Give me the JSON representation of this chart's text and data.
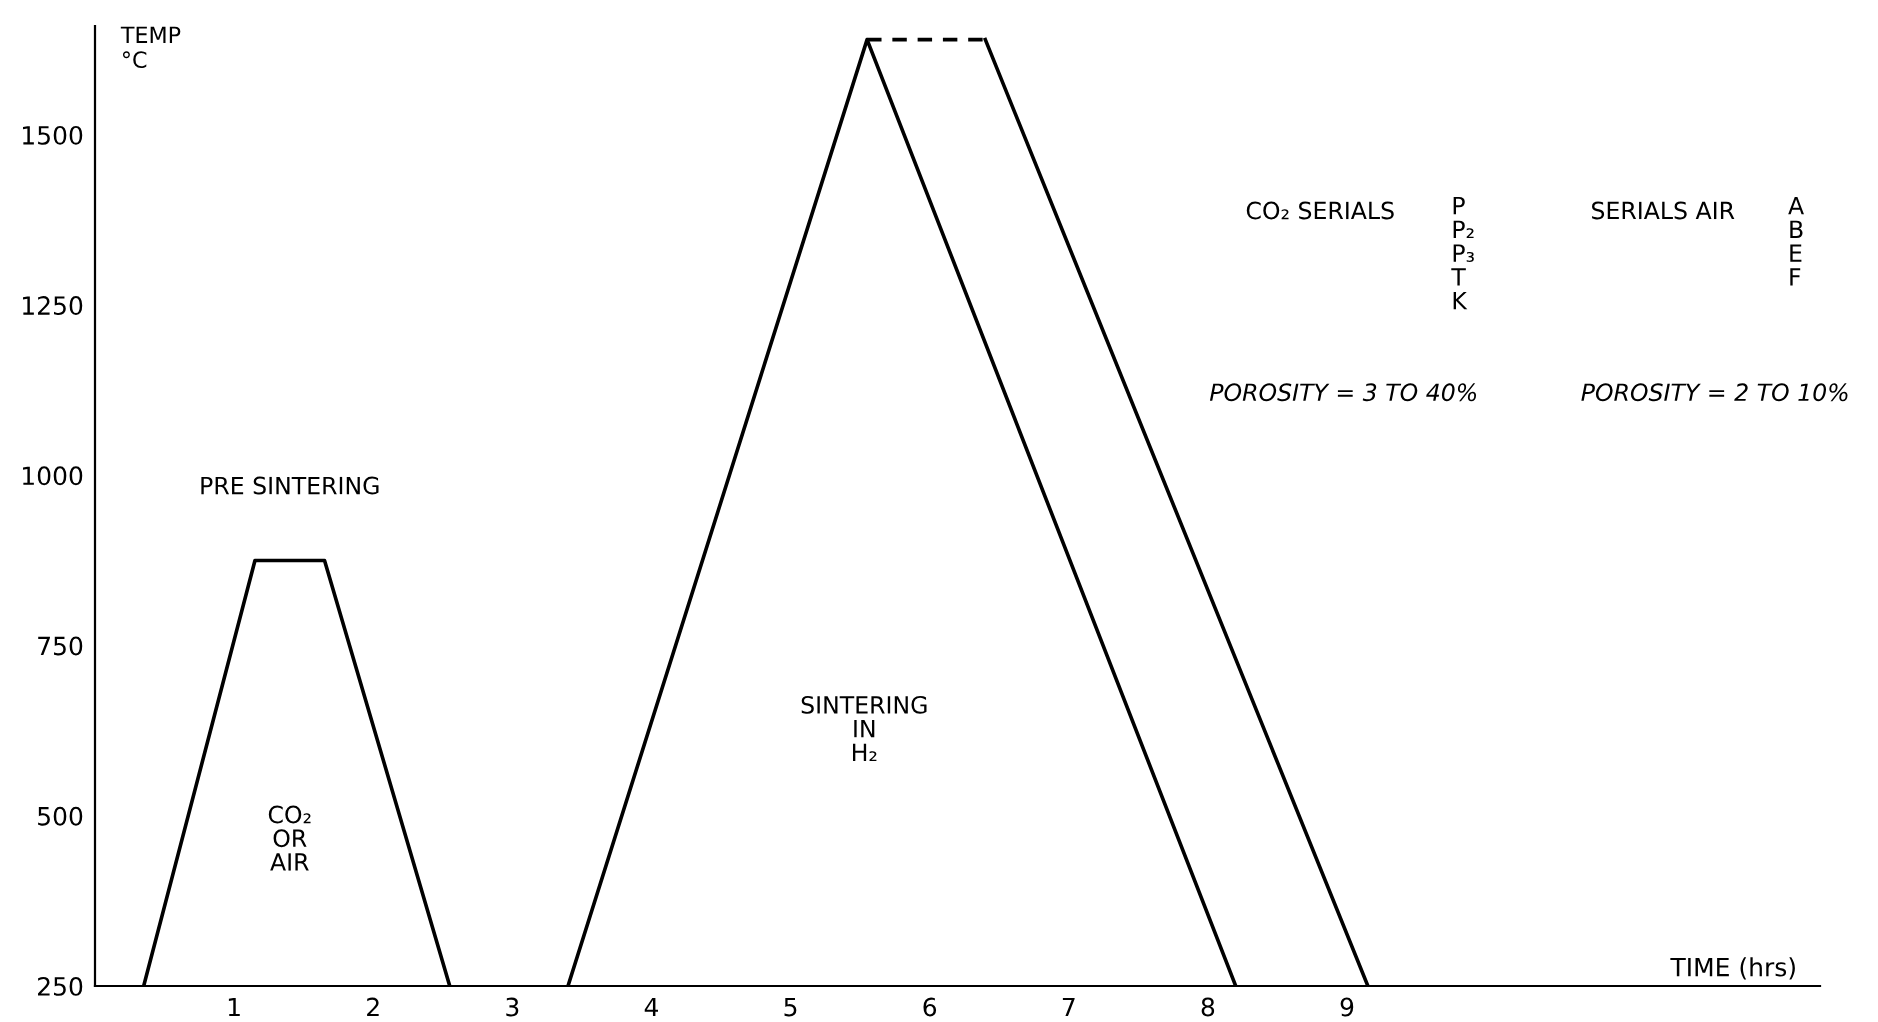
{
  "chart_data": {
    "type": "line",
    "xlabel": "TIME (hrs)",
    "ylabel": "TEMP\n°C",
    "xlim": [
      0,
      12.4
    ],
    "ylim": [
      250,
      1660
    ],
    "xticks": [
      1,
      2,
      3,
      4,
      5,
      6,
      7,
      8,
      9
    ],
    "yticks": [
      250,
      500,
      750,
      1000,
      1250,
      1500
    ],
    "grid": false,
    "legend": false,
    "marker": "none",
    "series": [
      {
        "color": "#000000",
        "line_style": "solid",
        "x": [
          0.35,
          1.15,
          1.65,
          2.55
        ],
        "values": [
          250,
          875,
          875,
          250
        ]
      },
      {
        "color": "#000000",
        "line_style": "solid",
        "x": [
          3.4,
          5.55,
          8.2
        ],
        "values": [
          250,
          1640,
          250
        ]
      },
      {
        "color": "#000000",
        "line_style": "dashed",
        "x": [
          5.55,
          6.4
        ],
        "values": [
          1640,
          1640
        ]
      },
      {
        "color": "#000000",
        "line_style": "solid",
        "x": [
          6.4,
          9.15
        ],
        "values": [
          1640,
          250
        ]
      }
    ],
    "annotations": [
      "PRE SINTERING",
      "CO₂\nOR\nAIR",
      "SINTERING\nIN\nH₂",
      "CO₂ SERIALS",
      "P\nP₂\nP₃\nT\nK",
      "POROSITY = 3 TO 40%",
      "SERIALS AIR",
      "A\nB\nE\nF",
      "POROSITY = 2 TO 10%"
    ]
  }
}
